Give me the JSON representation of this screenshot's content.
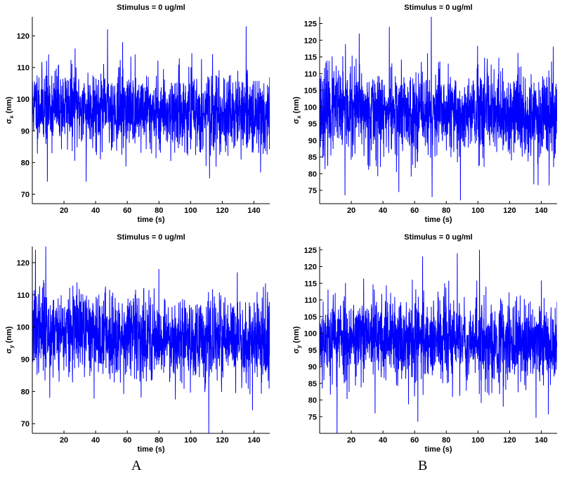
{
  "panel_captions": [
    "A",
    "B"
  ],
  "chart_data": [
    {
      "type": "line",
      "panel": "A",
      "title": "Stimulus = 0 ug/ml",
      "xlabel": "time (s)",
      "ylabel": "σ",
      "ylabel_sub": "x",
      "ylabel_unit": "(nm)",
      "xlim": [
        0,
        150
      ],
      "ylim": [
        67,
        126
      ],
      "xticks": [
        20,
        40,
        60,
        80,
        100,
        120,
        140
      ],
      "yticks": [
        70,
        80,
        90,
        100,
        110,
        120
      ],
      "series_color": "#0000ff",
      "series": [
        {
          "mean": 98,
          "noise_sd": 6,
          "trend_end": -3,
          "n_points": 1500,
          "seed": 11,
          "spikes": [
            {
              "x": 9.5,
              "y": 74
            },
            {
              "x": 34,
              "y": 74
            },
            {
              "x": 47.5,
              "y": 122
            },
            {
              "x": 57,
              "y": 118
            },
            {
              "x": 112,
              "y": 75
            },
            {
              "x": 27,
              "y": 116
            }
          ]
        }
      ]
    },
    {
      "type": "line",
      "panel": "B",
      "title": "Stimulus = 0 ug/ml",
      "xlabel": "time (s)",
      "ylabel": "σ",
      "ylabel_sub": "x",
      "ylabel_unit": "(nm)",
      "xlim": [
        0,
        150
      ],
      "ylim": [
        71,
        127
      ],
      "xticks": [
        20,
        40,
        60,
        80,
        100,
        120,
        140
      ],
      "yticks": [
        75,
        80,
        85,
        90,
        95,
        100,
        105,
        110,
        115,
        120,
        125
      ],
      "series_color": "#0000ff",
      "series": [
        {
          "mean": 99,
          "noise_sd": 6.5,
          "trend_end": -2,
          "n_points": 1500,
          "seed": 23,
          "spikes": [
            {
              "x": 16,
              "y": 73.5
            },
            {
              "x": 70.5,
              "y": 127
            },
            {
              "x": 71,
              "y": 73
            },
            {
              "x": 89,
              "y": 72
            },
            {
              "x": 44,
              "y": 124
            },
            {
              "x": 25,
              "y": 122
            },
            {
              "x": 145,
              "y": 76.5
            },
            {
              "x": 50,
              "y": 74.5
            }
          ]
        }
      ]
    },
    {
      "type": "line",
      "panel": "A",
      "title": "Stimulus = 0 ug/ml",
      "xlabel": "time (s)",
      "ylabel": "σ",
      "ylabel_sub": "y",
      "ylabel_unit": "(nm)",
      "xlim": [
        0,
        150
      ],
      "ylim": [
        67,
        125
      ],
      "xticks": [
        20,
        40,
        60,
        80,
        100,
        120,
        140
      ],
      "yticks": [
        70,
        80,
        90,
        100,
        110,
        120
      ],
      "series_color": "#0000ff",
      "series": [
        {
          "mean": 99,
          "noise_sd": 6.5,
          "trend_end": -4,
          "n_points": 1500,
          "seed": 37,
          "spikes": [
            {
              "x": 2,
              "y": 124
            },
            {
              "x": 8.5,
              "y": 125
            },
            {
              "x": 111.5,
              "y": 66
            },
            {
              "x": 11,
              "y": 78
            },
            {
              "x": 80,
              "y": 118
            },
            {
              "x": 129.5,
              "y": 117
            }
          ]
        }
      ]
    },
    {
      "type": "line",
      "panel": "B",
      "title": "Stimulus = 0 ug/ml",
      "xlabel": "time (s)",
      "ylabel": "σ",
      "ylabel_sub": "y",
      "ylabel_unit": "(nm)",
      "xlim": [
        0,
        150
      ],
      "ylim": [
        70,
        126
      ],
      "xticks": [
        20,
        40,
        60,
        80,
        100,
        120,
        140
      ],
      "yticks": [
        75,
        80,
        85,
        90,
        95,
        100,
        105,
        110,
        115,
        120,
        125
      ],
      "series_color": "#0000ff",
      "series": [
        {
          "mean": 99,
          "noise_sd": 6.5,
          "trend_end": -2,
          "n_points": 1500,
          "seed": 53,
          "spikes": [
            {
              "x": 11,
              "y": 70
            },
            {
              "x": 62,
              "y": 73.5
            },
            {
              "x": 101,
              "y": 125
            },
            {
              "x": 87,
              "y": 124
            },
            {
              "x": 65,
              "y": 123
            },
            {
              "x": 35,
              "y": 76
            },
            {
              "x": 116,
              "y": 78
            }
          ]
        }
      ]
    }
  ]
}
